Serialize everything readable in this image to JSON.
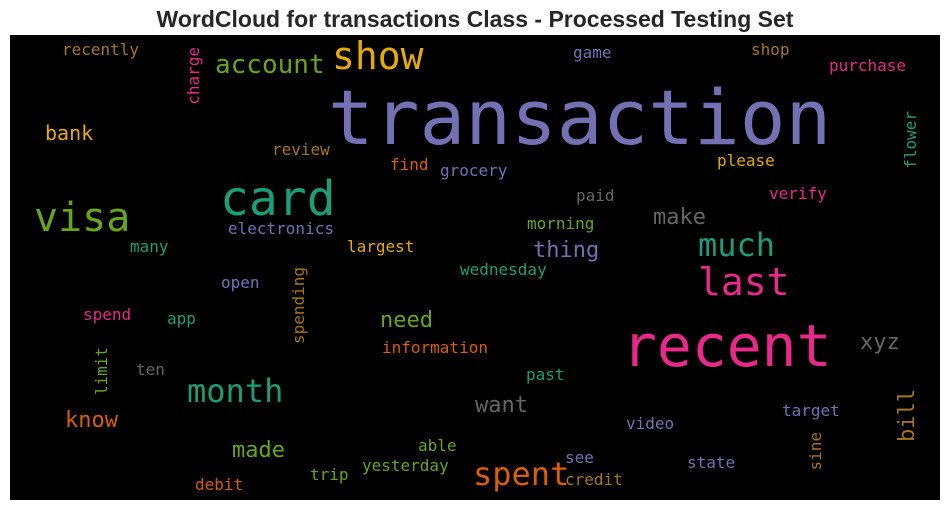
{
  "title": "WordCloud for transactions Class - Processed Testing Set",
  "words": [
    {
      "text": "transaction",
      "color": "#7570b3"
    },
    {
      "text": "recent",
      "color": "#e7298a"
    },
    {
      "text": "card",
      "color": "#1b9e77"
    },
    {
      "text": "visa",
      "color": "#66a61e"
    },
    {
      "text": "show",
      "color": "#e6ab02"
    },
    {
      "text": "last",
      "color": "#e7298a"
    },
    {
      "text": "much",
      "color": "#1b9e77"
    },
    {
      "text": "month",
      "color": "#1b9e77"
    },
    {
      "text": "spent",
      "color": "#d95f02"
    },
    {
      "text": "account",
      "color": "#66a61e"
    },
    {
      "text": "thing",
      "color": "#7570b3"
    },
    {
      "text": "make",
      "color": "#666666"
    },
    {
      "text": "want",
      "color": "#666666"
    },
    {
      "text": "know",
      "color": "#d95f02"
    },
    {
      "text": "made",
      "color": "#66a61e"
    },
    {
      "text": "need",
      "color": "#66a61e"
    },
    {
      "text": "bank",
      "color": "#e6ab02"
    },
    {
      "text": "xyz",
      "color": "#666666"
    },
    {
      "text": "bill",
      "color": "#a6761d"
    },
    {
      "text": "recently",
      "color": "#a6761d"
    },
    {
      "text": "charge",
      "color": "#e7298a"
    },
    {
      "text": "game",
      "color": "#7570b3"
    },
    {
      "text": "shop",
      "color": "#a6761d"
    },
    {
      "text": "purchase",
      "color": "#e7298a"
    },
    {
      "text": "flower",
      "color": "#1b9e77"
    },
    {
      "text": "review",
      "color": "#a6761d"
    },
    {
      "text": "find",
      "color": "#d95f02"
    },
    {
      "text": "grocery",
      "color": "#7570b3"
    },
    {
      "text": "please",
      "color": "#e6ab02"
    },
    {
      "text": "paid",
      "color": "#666666"
    },
    {
      "text": "verify",
      "color": "#e7298a"
    },
    {
      "text": "electronics",
      "color": "#7570b3"
    },
    {
      "text": "morning",
      "color": "#66a61e"
    },
    {
      "text": "many",
      "color": "#1b9e77"
    },
    {
      "text": "largest",
      "color": "#e6ab02"
    },
    {
      "text": "wednesday",
      "color": "#1b9e77"
    },
    {
      "text": "open",
      "color": "#7570b3"
    },
    {
      "text": "spending",
      "color": "#a6761d"
    },
    {
      "text": "spend",
      "color": "#e7298a"
    },
    {
      "text": "app",
      "color": "#1b9e77"
    },
    {
      "text": "information",
      "color": "#d95f02"
    },
    {
      "text": "limit",
      "color": "#66a61e"
    },
    {
      "text": "ten",
      "color": "#666666"
    },
    {
      "text": "past",
      "color": "#1b9e77"
    },
    {
      "text": "target",
      "color": "#7570b3"
    },
    {
      "text": "video",
      "color": "#7570b3"
    },
    {
      "text": "able",
      "color": "#66a61e"
    },
    {
      "text": "sine",
      "color": "#a6761d"
    },
    {
      "text": "see",
      "color": "#7570b3"
    },
    {
      "text": "state",
      "color": "#7570b3"
    },
    {
      "text": "trip",
      "color": "#66a61e"
    },
    {
      "text": "yesterday",
      "color": "#66a61e"
    },
    {
      "text": "credit",
      "color": "#a6761d"
    },
    {
      "text": "debit",
      "color": "#d95f02"
    }
  ]
}
